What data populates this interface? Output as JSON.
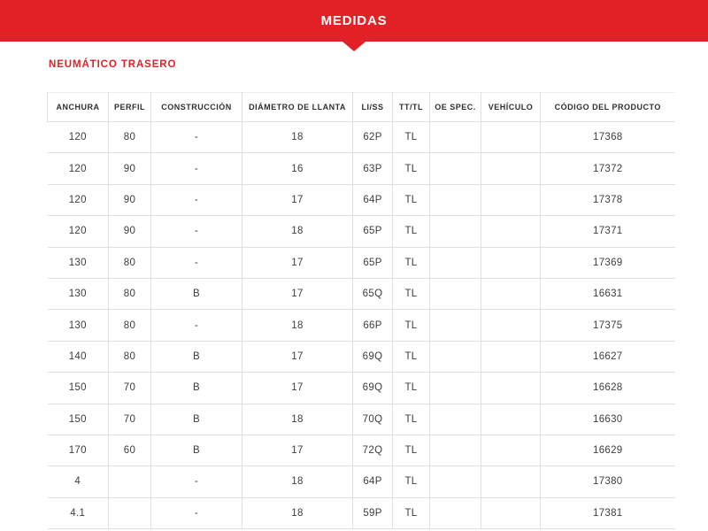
{
  "banner": {
    "title": "MEDIDAS"
  },
  "section": {
    "title": "NEUMÁTICO TRASERO"
  },
  "table": {
    "columns": [
      "ANCHURA",
      "PERFIL",
      "CONSTRUCCIÓN",
      "DIÁMETRO DE LLANTA",
      "LI/SS",
      "TT/TL",
      "OE SPEC.",
      "VEHÍCULO",
      "CÓDIGO DEL PRODUCTO"
    ],
    "rows": [
      [
        "120",
        "80",
        "-",
        "18",
        "62P",
        "TL",
        "",
        "",
        "17368"
      ],
      [
        "120",
        "90",
        "-",
        "16",
        "63P",
        "TL",
        "",
        "",
        "17372"
      ],
      [
        "120",
        "90",
        "-",
        "17",
        "64P",
        "TL",
        "",
        "",
        "17378"
      ],
      [
        "120",
        "90",
        "-",
        "18",
        "65P",
        "TL",
        "",
        "",
        "17371"
      ],
      [
        "130",
        "80",
        "-",
        "17",
        "65P",
        "TL",
        "",
        "",
        "17369"
      ],
      [
        "130",
        "80",
        "B",
        "17",
        "65Q",
        "TL",
        "",
        "",
        "16631"
      ],
      [
        "130",
        "80",
        "-",
        "18",
        "66P",
        "TL",
        "",
        "",
        "17375"
      ],
      [
        "140",
        "80",
        "B",
        "17",
        "69Q",
        "TL",
        "",
        "",
        "16627"
      ],
      [
        "150",
        "70",
        "B",
        "17",
        "69Q",
        "TL",
        "",
        "",
        "16628"
      ],
      [
        "150",
        "70",
        "B",
        "18",
        "70Q",
        "TL",
        "",
        "",
        "16630"
      ],
      [
        "170",
        "60",
        "B",
        "17",
        "72Q",
        "TL",
        "",
        "",
        "16629"
      ],
      [
        "4",
        "",
        "-",
        "18",
        "64P",
        "TL",
        "",
        "",
        "17380"
      ],
      [
        "4.1",
        "",
        "-",
        "18",
        "59P",
        "TL",
        "",
        "",
        "17381"
      ]
    ]
  },
  "colors": {
    "accent_red": "#e22127",
    "border_gray": "#e0e0e0",
    "body_text": "#3d3d3c",
    "header_text": "#2f2f2e"
  }
}
